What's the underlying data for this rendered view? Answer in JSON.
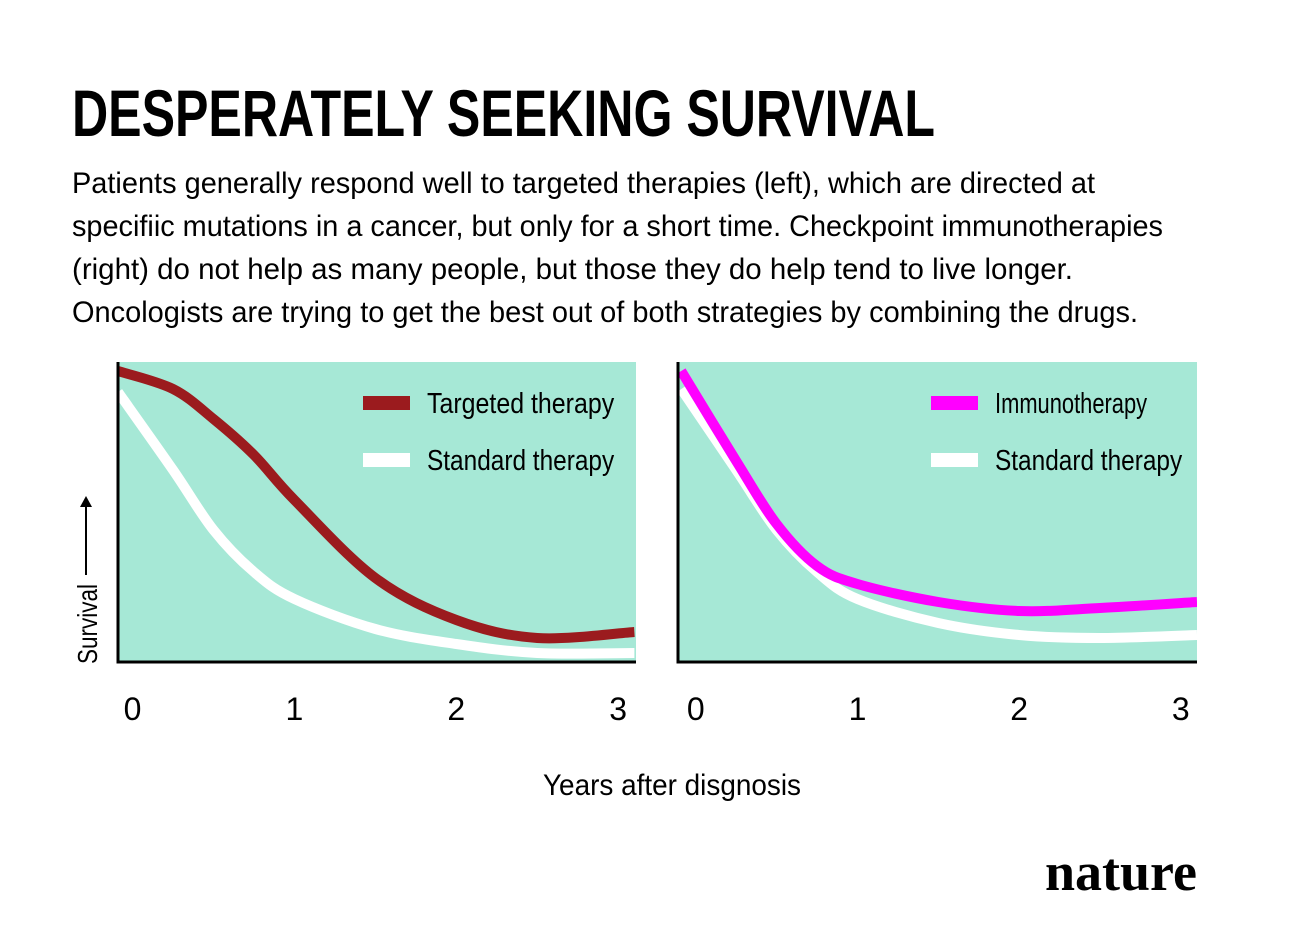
{
  "title": "DESPERATELY SEEKING SURVIVAL",
  "subtitle": [
    "Patients generally respond well to targeted therapies (left), which are directed at",
    "specifiic mutations in a cancer, but only for a short time.  Checkpoint immunotherapies",
    "(right) do not help as many people, but those they do help tend to live longer.",
    "Oncologists are trying to get the best out of both strategies by combining the drugs."
  ],
  "xlabel": "Years after disgnosis",
  "ylabel": "Survival",
  "logo": "nature",
  "chart_data": [
    {
      "type": "line",
      "background": "#a6e8d6",
      "legend": "upper right",
      "x": [
        -0.09,
        0.25,
        0.5,
        0.75,
        1,
        1.5,
        2,
        2.5,
        3.1
      ],
      "xlim": [
        -0.09,
        3.11
      ],
      "xticks": [
        0,
        1,
        2,
        3
      ],
      "ylim": [
        0,
        1
      ],
      "series": [
        {
          "name": "Targeted therapy",
          "color": "#9b1b1e",
          "values": [
            0.97,
            0.91,
            0.81,
            0.69,
            0.54,
            0.28,
            0.14,
            0.08,
            0.1
          ]
        },
        {
          "name": "Standard therapy",
          "color": "#ffffff",
          "values": [
            0.9,
            0.64,
            0.44,
            0.3,
            0.21,
            0.11,
            0.06,
            0.03,
            0.03
          ]
        }
      ]
    },
    {
      "type": "line",
      "background": "#a6e8d6",
      "legend": "upper right",
      "x": [
        -0.09,
        0.25,
        0.5,
        0.75,
        1,
        1.5,
        2,
        2.5,
        3.1
      ],
      "xlim": [
        -0.11,
        3.1
      ],
      "xticks": [
        0,
        1,
        2,
        3
      ],
      "ylim": [
        0,
        1
      ],
      "series": [
        {
          "name": "Immunotherapy",
          "color": "#ff00ff",
          "values": [
            0.97,
            0.67,
            0.46,
            0.32,
            0.26,
            0.2,
            0.17,
            0.18,
            0.2
          ]
        },
        {
          "name": "Standard therapy",
          "color": "#ffffff",
          "values": [
            0.91,
            0.64,
            0.44,
            0.3,
            0.21,
            0.13,
            0.09,
            0.08,
            0.09
          ]
        }
      ]
    }
  ]
}
